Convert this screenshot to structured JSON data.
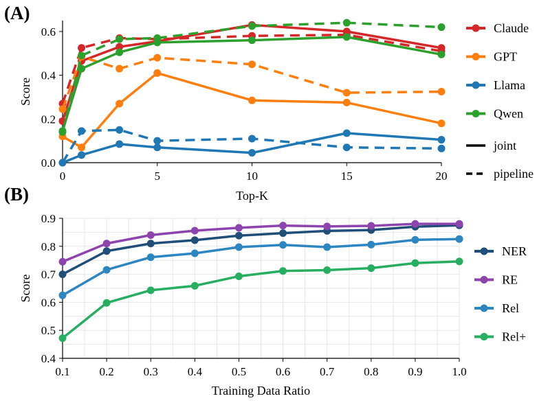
{
  "chart_data": [
    {
      "panel": "(A)",
      "type": "line",
      "xlabel": "Top-K",
      "ylabel": "Score",
      "xlim": [
        0,
        20
      ],
      "ylim": [
        0,
        0.65
      ],
      "x": [
        0,
        1,
        3,
        5,
        10,
        15,
        20
      ],
      "xticks": [
        0,
        5,
        10,
        15,
        20
      ],
      "yticks": [
        0.0,
        0.2,
        0.4,
        0.6
      ],
      "grid": false,
      "legend_position": "right",
      "series": [
        {
          "name": "Claude",
          "mode": "joint",
          "color": "#d62728",
          "values": [
            0.19,
            0.465,
            0.53,
            0.555,
            0.63,
            0.6,
            0.525
          ]
        },
        {
          "name": "Claude",
          "mode": "pipeline",
          "color": "#d62728",
          "values": [
            0.27,
            0.525,
            0.57,
            0.565,
            0.58,
            0.585,
            0.51
          ]
        },
        {
          "name": "GPT",
          "mode": "joint",
          "color": "#ff7f0e",
          "values": [
            0.12,
            0.07,
            0.27,
            0.41,
            0.285,
            0.275,
            0.18
          ]
        },
        {
          "name": "GPT",
          "mode": "pipeline",
          "color": "#ff7f0e",
          "values": [
            0.245,
            0.485,
            0.43,
            0.48,
            0.45,
            0.32,
            0.325
          ]
        },
        {
          "name": "Llama",
          "mode": "joint",
          "color": "#1f77b4",
          "values": [
            0.0,
            0.035,
            0.085,
            0.07,
            0.045,
            0.135,
            0.105
          ]
        },
        {
          "name": "Llama",
          "mode": "pipeline",
          "color": "#1f77b4",
          "values": [
            0.0,
            0.145,
            0.15,
            0.1,
            0.11,
            0.07,
            0.065
          ]
        },
        {
          "name": "Qwen",
          "mode": "joint",
          "color": "#2ca02c",
          "values": [
            0.145,
            0.43,
            0.505,
            0.55,
            0.56,
            0.575,
            0.495
          ]
        },
        {
          "name": "Qwen",
          "mode": "pipeline",
          "color": "#2ca02c",
          "values": [
            0.14,
            0.49,
            0.565,
            0.57,
            0.625,
            0.64,
            0.62
          ]
        }
      ],
      "legend": {
        "models": [
          "Claude",
          "GPT",
          "Llama",
          "Qwen"
        ],
        "styles": [
          "joint",
          "pipeline"
        ]
      }
    },
    {
      "panel": "(B)",
      "type": "line",
      "xlabel": "Training Data Ratio",
      "ylabel": "Score",
      "xlim": [
        0.1,
        1.0
      ],
      "ylim": [
        0.4,
        0.9
      ],
      "x": [
        0.1,
        0.2,
        0.3,
        0.4,
        0.5,
        0.6,
        0.7,
        0.8,
        0.9,
        1.0
      ],
      "xticks": [
        "0.1",
        "0.2",
        "0.3",
        "0.4",
        "0.5",
        "0.6",
        "0.7",
        "0.8",
        "0.9",
        "1.0"
      ],
      "yticks": [
        "0.4",
        "0.5",
        "0.6",
        "0.7",
        "0.8",
        "0.9"
      ],
      "grid": true,
      "legend_position": "right",
      "series": [
        {
          "name": "NER",
          "color": "#1f4e79",
          "values": [
            0.7,
            0.783,
            0.81,
            0.822,
            0.838,
            0.847,
            0.855,
            0.858,
            0.87,
            0.875
          ]
        },
        {
          "name": "RE",
          "color": "#8e44ad",
          "values": [
            0.745,
            0.81,
            0.84,
            0.856,
            0.866,
            0.874,
            0.871,
            0.873,
            0.88,
            0.88
          ]
        },
        {
          "name": "Rel",
          "color": "#2e86c1",
          "values": [
            0.625,
            0.716,
            0.761,
            0.775,
            0.797,
            0.805,
            0.797,
            0.806,
            0.823,
            0.826
          ]
        },
        {
          "name": "Rel+",
          "color": "#27ae60",
          "values": [
            0.472,
            0.598,
            0.643,
            0.659,
            0.693,
            0.712,
            0.715,
            0.722,
            0.74,
            0.746
          ]
        }
      ]
    }
  ]
}
